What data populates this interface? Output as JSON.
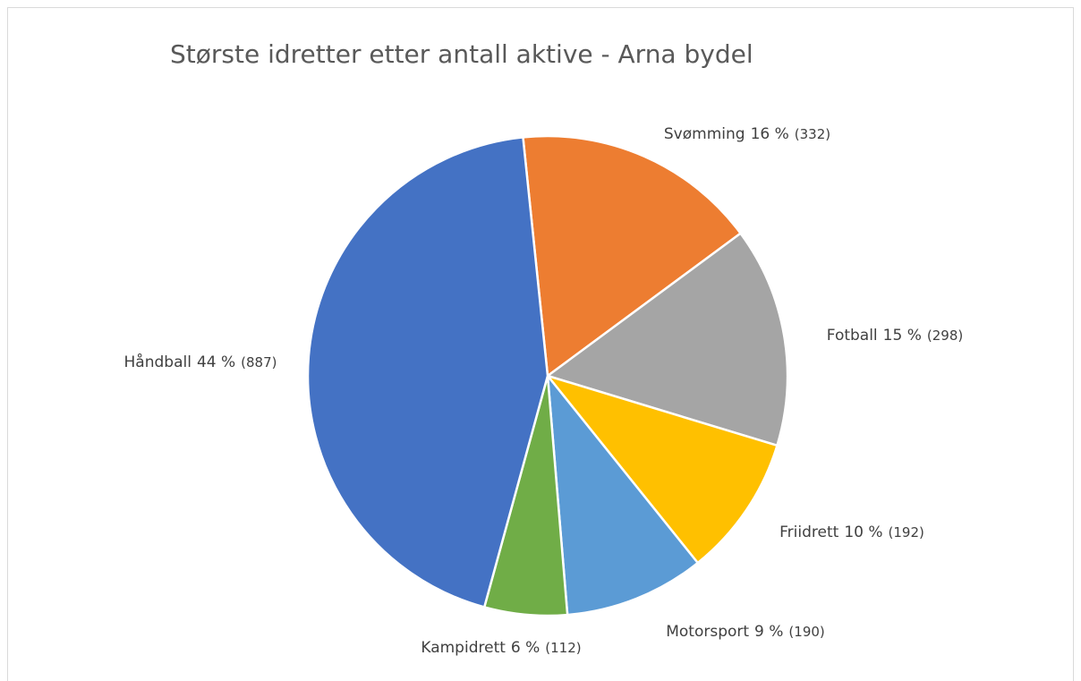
{
  "chart_data": {
    "type": "pie",
    "title": "Største idretter etter antall aktive - Arna bydel",
    "categories": [
      "Svømming",
      "Fotball",
      "Friidrett",
      "Motorsport",
      "Kampidrett",
      "Håndball"
    ],
    "values": [
      332,
      298,
      192,
      190,
      112,
      887
    ],
    "value_labels": [
      "(332)",
      "(298)",
      "(192)",
      "(190)",
      "(112)",
      "(887)"
    ],
    "percent_labels": [
      "16 %",
      "15 %",
      "10 %",
      "9 %",
      "6 %",
      "44 %"
    ],
    "colors": [
      "#ED7D31",
      "#A5A5A5",
      "#FFC000",
      "#5B9BD5",
      "#70AD47",
      "#4472C4"
    ]
  }
}
